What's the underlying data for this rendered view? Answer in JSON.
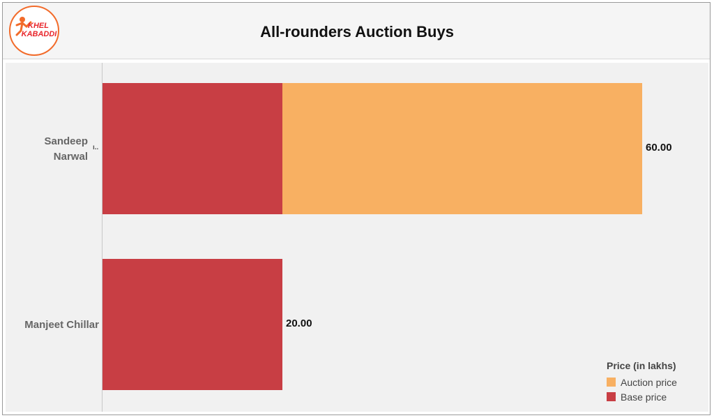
{
  "colors": {
    "auction": "#f8b062",
    "base": "#c83e44",
    "logo_ring": "#f26b2a",
    "logo_text": "#e8262c"
  },
  "logo": {
    "line1": "KHEL",
    "line2": "KABADDI"
  },
  "chart_data": {
    "type": "bar",
    "orientation": "horizontal",
    "stacked": true,
    "title": "All-rounders Auction Buys",
    "categories": [
      "Sandeep Narwal",
      "Manjeet Chillar"
    ],
    "category_lines": [
      [
        "Sandeep",
        "Narwal"
      ],
      [
        "Manjeet Chillar"
      ]
    ],
    "series": [
      {
        "name": "Base price",
        "values": [
          20,
          20
        ]
      },
      {
        "name": "Auction price",
        "values": [
          40,
          0
        ]
      }
    ],
    "totals_labels": [
      "60.00",
      "20.00"
    ],
    "xlim": [
      0,
      60
    ],
    "grid": false,
    "legend": {
      "title": "Price (in lakhs)",
      "position": "bottom-right",
      "items": [
        "Auction price",
        "Base price"
      ]
    }
  }
}
